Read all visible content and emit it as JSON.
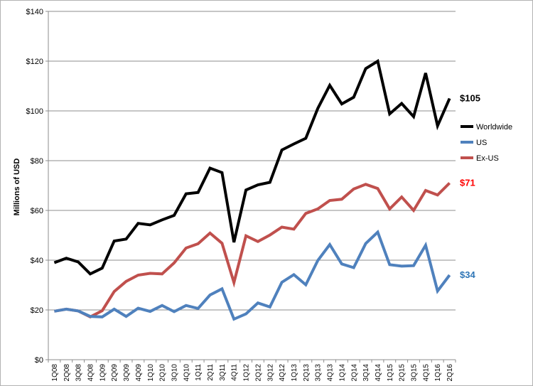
{
  "chart_data": {
    "type": "line",
    "title": "",
    "xlabel": "",
    "ylabel": "Millions of USD",
    "ylim": [
      0,
      140
    ],
    "yticks": [
      0,
      20,
      40,
      60,
      80,
      100,
      120,
      140
    ],
    "ytick_labels": [
      "$0",
      "$20",
      "$40",
      "$60",
      "$80",
      "$100",
      "$120",
      "$140"
    ],
    "grid": "horizontal",
    "legend_position": "right",
    "categories": [
      "1Q08",
      "2Q08",
      "3Q08",
      "4Q08",
      "1Q09",
      "2Q09",
      "3Q09",
      "4Q09",
      "1Q10",
      "2Q10",
      "3Q10",
      "4Q10",
      "1Q11",
      "2Q11",
      "3Q11",
      "4Q11",
      "1Q12",
      "2Q12",
      "3Q12",
      "4Q12",
      "1Q13",
      "2Q13",
      "3Q13",
      "4Q13",
      "1Q14",
      "2Q14",
      "3Q14",
      "4Q14",
      "1Q15",
      "2Q15",
      "3Q15",
      "4Q15",
      "1Q16",
      "2Q16"
    ],
    "series": [
      {
        "name": "Worldwide",
        "color": "#000000",
        "end_label": "$105",
        "end_label_color": "#000000",
        "values": [
          39,
          40.8,
          39.3,
          34.5,
          36.8,
          47.7,
          48.5,
          54.8,
          54.2,
          56.2,
          58,
          66.7,
          67.2,
          77,
          75.2,
          47.2,
          68.2,
          70.3,
          71.3,
          84.3,
          86.7,
          89,
          101,
          110.3,
          102.8,
          105.5,
          117,
          120,
          98.8,
          103,
          97.7,
          115.2,
          94,
          105
        ]
      },
      {
        "name": "US",
        "color": "#4f81bd",
        "end_label": "$34",
        "end_label_color": "#2e75b6",
        "values": [
          19.5,
          20.3,
          19.6,
          17.4,
          17.2,
          20.3,
          17.4,
          20.7,
          19.4,
          21.8,
          19.3,
          21.8,
          20.6,
          26,
          28.5,
          16.3,
          18.4,
          22.8,
          21.2,
          31.1,
          34.2,
          30.1,
          39.9,
          46.3,
          38.5,
          37,
          46.7,
          51.3,
          38.2,
          37.6,
          37.8,
          46,
          27.6,
          34
        ]
      },
      {
        "name": "Ex-US",
        "color": "#c0504d",
        "end_label": "$71",
        "end_label_color": "#ff0000",
        "values": [
          19.5,
          20.3,
          19.6,
          17.2,
          19.7,
          27.4,
          31.5,
          34,
          34.7,
          34.5,
          38.9,
          44.9,
          46.6,
          50.9,
          46.8,
          31,
          49.8,
          47.5,
          50.1,
          53.3,
          52.5,
          58.8,
          60.6,
          64,
          64.5,
          68.6,
          70.5,
          68.8,
          60.6,
          65.4,
          60,
          68,
          66.2,
          71
        ]
      }
    ]
  }
}
